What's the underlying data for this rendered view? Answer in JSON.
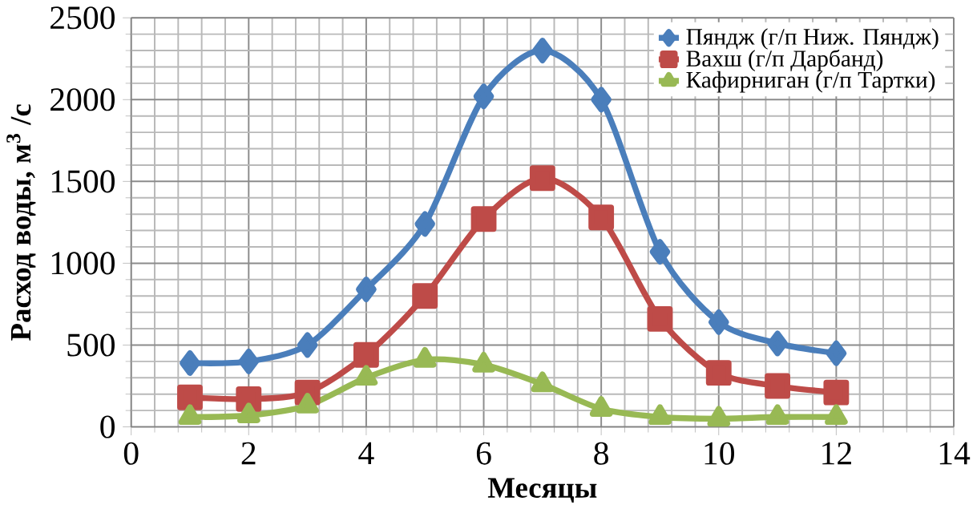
{
  "chart_data": {
    "type": "line",
    "xlabel": "Месяцы",
    "ylabel": "Расход воды,  м$^{3}$ /с",
    "xlim": [
      0,
      14
    ],
    "xticks": [
      0,
      2,
      4,
      6,
      8,
      10,
      12,
      14
    ],
    "ylim": [
      0,
      2500
    ],
    "yticks": [
      0,
      500,
      1000,
      1500,
      2000,
      2500
    ],
    "grid": true,
    "legend": "top right",
    "x": [
      1,
      2,
      3,
      4,
      5,
      6,
      7,
      8,
      9,
      10,
      11,
      12
    ],
    "series": [
      {
        "name": "Пяндж (г/п Ниж. Пяндж)",
        "color": "#4a7ebb",
        "marker": "diamond",
        "values": [
          390,
          400,
          500,
          840,
          1240,
          2020,
          2300,
          2000,
          1070,
          640,
          510,
          450
        ]
      },
      {
        "name": "Вахш (г/п Дарбанд)",
        "color": "#be4b48",
        "marker": "square",
        "values": [
          180,
          170,
          210,
          440,
          800,
          1270,
          1520,
          1280,
          660,
          330,
          250,
          210
        ]
      },
      {
        "name": "Кафирниган (г/п Тартки)",
        "color": "#98b954",
        "marker": "triangle",
        "values": [
          60,
          70,
          130,
          300,
          410,
          380,
          260,
          110,
          60,
          50,
          60,
          60
        ]
      }
    ]
  }
}
